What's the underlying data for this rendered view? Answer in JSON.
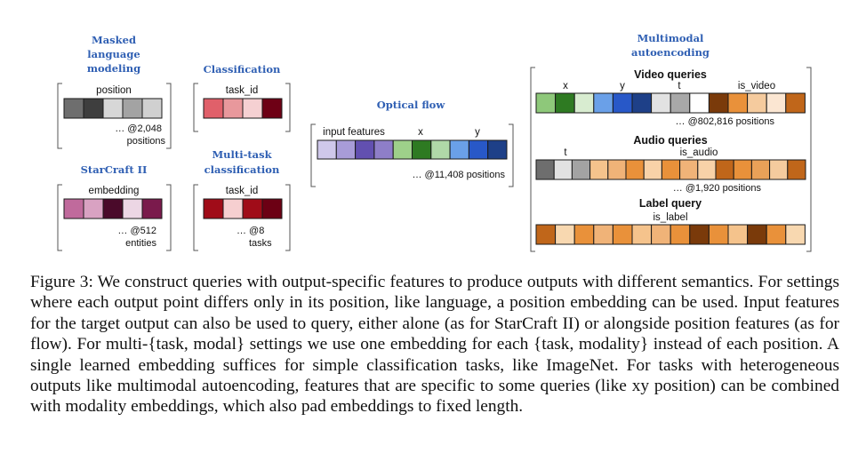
{
  "panels": {
    "mlm": {
      "title": [
        "Masked",
        "language",
        "modeling"
      ],
      "label": "position",
      "count": [
        "… @2,048",
        "positions"
      ],
      "colors": [
        "#6e6e6e",
        "#3e3e3e",
        "#d7d7d7",
        "#a3a3a3",
        "#d0d0d0"
      ]
    },
    "classification": {
      "title": [
        "Classification"
      ],
      "label": "task_id",
      "colors": [
        "#e0606a",
        "#e8989c",
        "#f5d0d2",
        "#6e0015"
      ]
    },
    "starcraft": {
      "title": [
        "StarCraft II"
      ],
      "label": "embedding",
      "count": [
        "… @512",
        "entities"
      ],
      "colors": [
        "#c06a9c",
        "#d9a2c2",
        "#4a0a2a",
        "#ecd6e4",
        "#7a1a4c"
      ]
    },
    "multitask": {
      "title": [
        "Multi-task",
        "classification"
      ],
      "label": "task_id",
      "count": [
        "… @8",
        "tasks"
      ],
      "colors": [
        "#a00c18",
        "#f6cfd0",
        "#a00c18",
        "#6c0014"
      ]
    },
    "flow": {
      "title": [
        "Optical flow"
      ],
      "label_features": "input features",
      "label_x": "x",
      "label_y": "y",
      "count": "… @11,408 positions",
      "colors": [
        "#cfc8ea",
        "#a89cd8",
        "#6250b0",
        "#8e7ec8",
        "#9ed08a",
        "#2e7a22",
        "#b0d8a8",
        "#6aa0e8",
        "#2858c8",
        "#1e4088"
      ]
    },
    "multimodal": {
      "title": [
        "Multimodal",
        "autoencoding"
      ],
      "video": {
        "title": "Video queries",
        "label_x": "x",
        "label_y": "y",
        "label_t": "t",
        "label_mod": "is_video",
        "count": "… @802,816 positions",
        "colors": [
          "#8ec87a",
          "#2e7a22",
          "#d8ecd0",
          "#6aa0e8",
          "#2858c8",
          "#1e4088",
          "#e2e2e2",
          "#a8a8a8",
          "#ffffff",
          "#7a3a0a",
          "#e9913a",
          "#f5cb9e",
          "#fbe6d2",
          "#c0661a"
        ]
      },
      "audio": {
        "title": "Audio queries",
        "label_t": "t",
        "label_mod": "is_audio",
        "count": "… @1,920 positions",
        "colors": [
          "#6e6e6e",
          "#e2e2e2",
          "#a3a3a3",
          "#f5c38c",
          "#f0b378",
          "#e9913a",
          "#f8d2a8",
          "#e9913a",
          "#f0b378",
          "#f8d2a8",
          "#c0661a",
          "#e9913a",
          "#e9a158",
          "#f5cb9e",
          "#c0661a"
        ]
      },
      "label": {
        "title": "Label query",
        "label_mod": "is_label",
        "colors": [
          "#c0661a",
          "#f8d8b0",
          "#e9913a",
          "#f0b378",
          "#e9913a",
          "#f5c38c",
          "#f0b378",
          "#e9913a",
          "#7a3a0a",
          "#e9913a",
          "#f5c38c",
          "#7a3a0a",
          "#e9913a",
          "#f8d8b0"
        ]
      }
    }
  },
  "caption": "Figure 3:  We construct queries with output-specific features to produce outputs with different semantics. For settings where each output point differs only in its position, like language, a position embedding can be used. Input features for the target output can also be used to query, either alone (as for StarCraft II) or alongside position features (as for flow). For multi-{task, modal} settings we use one embedding for each {task, modality} instead of each position. A single learned embedding suffices for simple classification tasks, like ImageNet. For tasks with heterogeneous outputs like multimodal autoencoding, features that are specific to some queries (like xy position) can be combined with modality embeddings, which also pad embeddings to fixed length."
}
